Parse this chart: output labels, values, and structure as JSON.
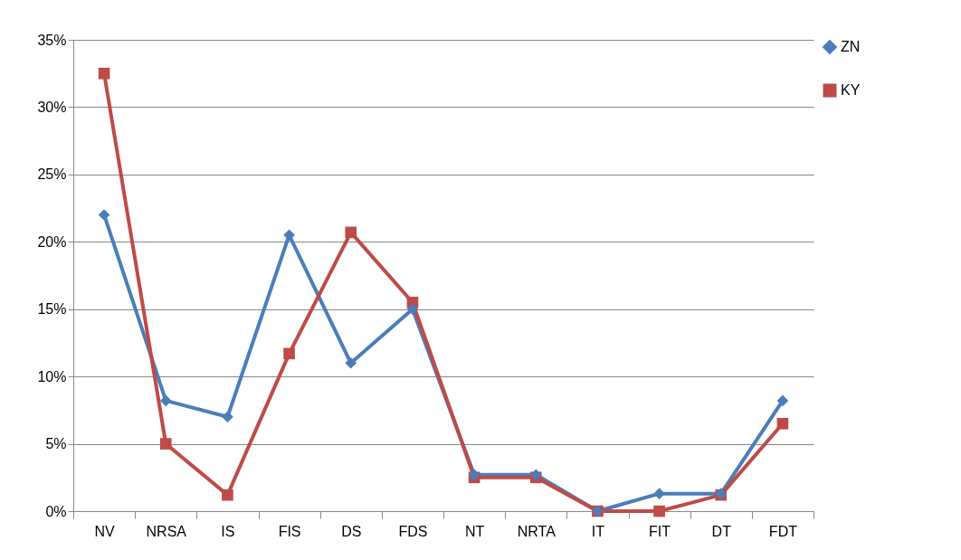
{
  "chart_data": {
    "type": "line",
    "categories": [
      "NV",
      "NRSA",
      "IS",
      "FIS",
      "DS",
      "FDS",
      "NT",
      "NRTA",
      "IT",
      "FIT",
      "DT",
      "FDT"
    ],
    "series": [
      {
        "name": "ZN",
        "color": "#4a7ebb",
        "marker": "diamond",
        "values": [
          22,
          8.2,
          7,
          20.5,
          11,
          15,
          2.7,
          2.7,
          0,
          1.3,
          1.3,
          8.2
        ]
      },
      {
        "name": "KY",
        "color": "#be4b48",
        "marker": "square",
        "values": [
          32.5,
          5,
          1.2,
          11.7,
          20.7,
          15.5,
          2.5,
          2.5,
          0,
          0,
          1.2,
          6.5
        ]
      }
    ],
    "ylim": [
      0,
      35
    ],
    "yticks": [
      {
        "value": 0,
        "label": "0%"
      },
      {
        "value": 5,
        "label": "5%"
      },
      {
        "value": 10,
        "label": "10%"
      },
      {
        "value": 15,
        "label": "15%"
      },
      {
        "value": 20,
        "label": "20%"
      },
      {
        "value": 25,
        "label": "25%"
      },
      {
        "value": 30,
        "label": "30%"
      },
      {
        "value": 35,
        "label": "35%"
      }
    ],
    "grid": "y",
    "legend": "right",
    "line_style": "solid"
  }
}
